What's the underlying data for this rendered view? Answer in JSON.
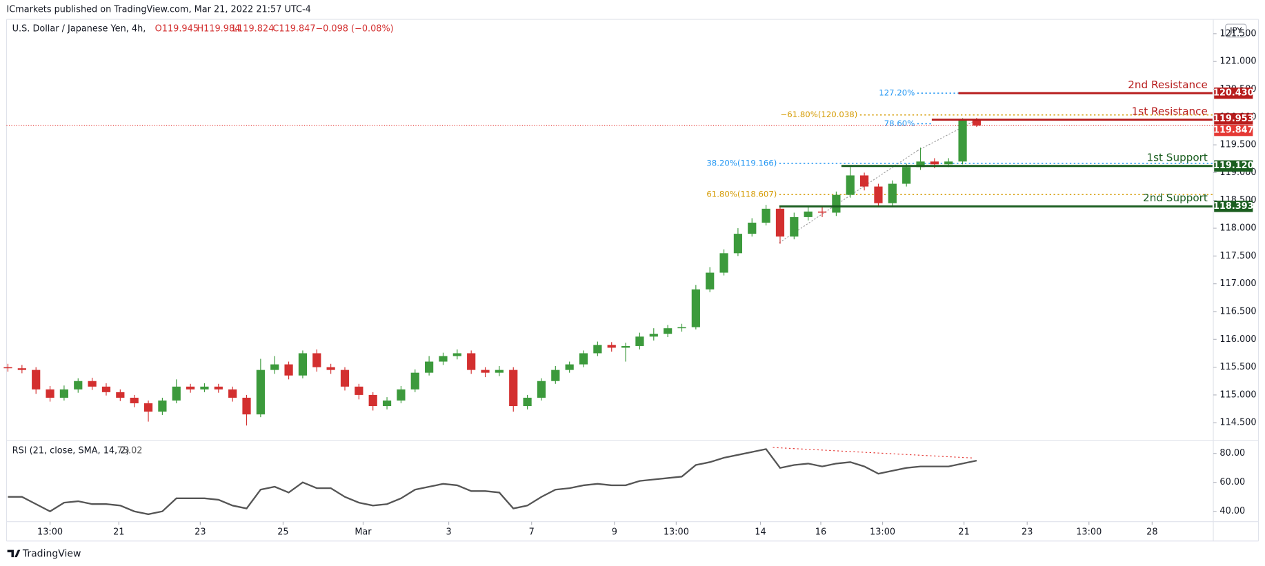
{
  "header": {
    "publisher": "ICmarkets published on TradingView.com, Mar 21, 2022 21:57 UTC-4",
    "symbol": "U.S. Dollar / Japanese Yen, 4h,",
    "readout": [
      "O119.945",
      "H119.984",
      "L119.824",
      "C119.847",
      "−0.098 (−0.08%)"
    ],
    "currency": "JPY",
    "brand": "TradingView"
  },
  "chart_data": {
    "type": "candlestick",
    "up_color": "#3c9a3c",
    "down_color": "#d32f2f",
    "xlim": [
      -0.1,
      85.8
    ],
    "ylim": [
      114.2,
      121.7
    ],
    "yticks": [
      {
        "value": 114.5,
        "label": "114.500"
      },
      {
        "value": 115,
        "label": "115.000"
      },
      {
        "value": 115.5,
        "label": "115.500"
      },
      {
        "value": 116,
        "label": "116.000"
      },
      {
        "value": 116.5,
        "label": "116.500"
      },
      {
        "value": 117,
        "label": "117.000"
      },
      {
        "value": 117.5,
        "label": "117.500"
      },
      {
        "value": 118,
        "label": "118.000"
      },
      {
        "value": 118.5,
        "label": "118.500"
      },
      {
        "value": 119,
        "label": "119.000"
      },
      {
        "value": 119.5,
        "label": "119.500"
      },
      {
        "value": 120,
        "label": "120.000"
      },
      {
        "value": 120.5,
        "label": "120.500"
      },
      {
        "value": 121,
        "label": "121.000"
      },
      {
        "value": 121.5,
        "label": "121.500"
      }
    ],
    "xticks": [
      {
        "value": 3,
        "label": "13:00"
      },
      {
        "value": 7.9,
        "label": "21"
      },
      {
        "value": 13.7,
        "label": "23"
      },
      {
        "value": 19.6,
        "label": "25"
      },
      {
        "value": 25.3,
        "label": "Mar"
      },
      {
        "value": 31.4,
        "label": "3"
      },
      {
        "value": 37.3,
        "label": "7"
      },
      {
        "value": 43.2,
        "label": "9"
      },
      {
        "value": 47.6,
        "label": "13:00"
      },
      {
        "value": 53.6,
        "label": "14"
      },
      {
        "value": 57.9,
        "label": "16"
      },
      {
        "value": 62.3,
        "label": "13:00"
      },
      {
        "value": 68.1,
        "label": "21"
      },
      {
        "value": 72.6,
        "label": "23"
      },
      {
        "value": 77,
        "label": "13:00"
      },
      {
        "value": 81.5,
        "label": "28"
      }
    ],
    "ohlc": [
      [
        115.5,
        115.56,
        115.42,
        115.48
      ],
      [
        115.48,
        115.54,
        115.39,
        115.45
      ],
      [
        115.45,
        115.5,
        115.02,
        115.1
      ],
      [
        115.1,
        115.16,
        114.88,
        114.95
      ],
      [
        114.95,
        115.17,
        114.9,
        115.1
      ],
      [
        115.1,
        115.3,
        115.04,
        115.25
      ],
      [
        115.25,
        115.31,
        115.09,
        115.15
      ],
      [
        115.15,
        115.21,
        114.99,
        115.05
      ],
      [
        115.05,
        115.1,
        114.89,
        114.95
      ],
      [
        114.95,
        115.0,
        114.78,
        114.85
      ],
      [
        114.85,
        114.9,
        114.52,
        114.7
      ],
      [
        114.7,
        114.95,
        114.64,
        114.9
      ],
      [
        114.9,
        115.28,
        114.85,
        115.15
      ],
      [
        115.15,
        115.2,
        115.04,
        115.1
      ],
      [
        115.1,
        115.21,
        115.05,
        115.15
      ],
      [
        115.15,
        115.2,
        115.04,
        115.1
      ],
      [
        115.1,
        115.15,
        114.88,
        114.95
      ],
      [
        114.95,
        115.0,
        114.45,
        114.65
      ],
      [
        114.65,
        115.65,
        114.6,
        115.45
      ],
      [
        115.45,
        115.7,
        115.38,
        115.55
      ],
      [
        115.55,
        115.6,
        115.28,
        115.35
      ],
      [
        115.35,
        115.8,
        115.3,
        115.75
      ],
      [
        115.75,
        115.82,
        115.42,
        115.5
      ],
      [
        115.5,
        115.56,
        115.38,
        115.45
      ],
      [
        115.45,
        115.5,
        115.08,
        115.15
      ],
      [
        115.15,
        115.2,
        114.92,
        115.0
      ],
      [
        115.0,
        115.05,
        114.72,
        114.8
      ],
      [
        114.8,
        114.96,
        114.74,
        114.9
      ],
      [
        114.9,
        115.16,
        114.85,
        115.1
      ],
      [
        115.1,
        115.46,
        115.05,
        115.4
      ],
      [
        115.4,
        115.7,
        115.35,
        115.6
      ],
      [
        115.6,
        115.76,
        115.54,
        115.7
      ],
      [
        115.7,
        115.82,
        115.64,
        115.75
      ],
      [
        115.75,
        115.8,
        115.38,
        115.45
      ],
      [
        115.45,
        115.5,
        115.32,
        115.4
      ],
      [
        115.4,
        115.52,
        115.34,
        115.45
      ],
      [
        115.45,
        115.5,
        114.7,
        114.8
      ],
      [
        114.8,
        115.0,
        114.74,
        114.95
      ],
      [
        114.95,
        115.3,
        114.9,
        115.25
      ],
      [
        115.25,
        115.52,
        115.2,
        115.45
      ],
      [
        115.45,
        115.6,
        115.4,
        115.55
      ],
      [
        115.55,
        115.8,
        115.5,
        115.75
      ],
      [
        115.75,
        115.96,
        115.7,
        115.9
      ],
      [
        115.9,
        115.95,
        115.78,
        115.85
      ],
      [
        115.85,
        115.94,
        115.6,
        115.88
      ],
      [
        115.88,
        116.12,
        115.82,
        116.05
      ],
      [
        116.05,
        116.2,
        115.98,
        116.1
      ],
      [
        116.1,
        116.26,
        116.04,
        116.2
      ],
      [
        116.2,
        116.28,
        116.14,
        116.22
      ],
      [
        116.22,
        116.98,
        116.18,
        116.9
      ],
      [
        116.9,
        117.3,
        116.85,
        117.2
      ],
      [
        117.2,
        117.62,
        117.15,
        117.55
      ],
      [
        117.55,
        118.0,
        117.5,
        117.9
      ],
      [
        117.9,
        118.18,
        117.85,
        118.1
      ],
      [
        118.1,
        118.42,
        118.05,
        118.35
      ],
      [
        118.35,
        118.4,
        117.72,
        117.85
      ],
      [
        117.85,
        118.28,
        117.8,
        118.2
      ],
      [
        118.2,
        118.38,
        118.14,
        118.3
      ],
      [
        118.3,
        118.4,
        118.2,
        118.28
      ],
      [
        118.28,
        118.66,
        118.22,
        118.6
      ],
      [
        118.6,
        119.1,
        118.55,
        118.95
      ],
      [
        118.95,
        119.0,
        118.68,
        118.75
      ],
      [
        118.75,
        118.8,
        118.38,
        118.45
      ],
      [
        118.45,
        118.86,
        118.4,
        118.8
      ],
      [
        118.8,
        119.16,
        118.75,
        119.1
      ],
      [
        119.1,
        119.45,
        119.05,
        119.2
      ],
      [
        119.2,
        119.26,
        119.08,
        119.15
      ],
      [
        119.15,
        119.26,
        119.1,
        119.2
      ],
      [
        119.2,
        119.98,
        119.15,
        119.94
      ],
      [
        119.945,
        119.984,
        119.824,
        119.847
      ]
    ],
    "levels": [
      {
        "name": "2nd Resistance",
        "value": 120.43,
        "label": "120.430",
        "color": "#b71c1c"
      },
      {
        "name": "1st Resistance",
        "value": 119.953,
        "label": "119.953",
        "color": "#b71c1c"
      },
      {
        "name": "1st Support",
        "value": 119.12,
        "label": "119.120",
        "color": "#1b5e20"
      },
      {
        "name": "2nd Support",
        "value": 118.393,
        "label": "118.393",
        "color": "#1b5e20"
      }
    ],
    "fib_levels": [
      {
        "label": "127.20%",
        "value": 120.43,
        "color": "#2196f3"
      },
      {
        "label": "−61.80%(120.038)",
        "value": 120.038,
        "color": "#d49a00"
      },
      {
        "label": "78.60%",
        "value": 119.88,
        "color": "#2196f3"
      },
      {
        "label": "38.20%(119.166)",
        "value": 119.166,
        "color": "#2196f3"
      },
      {
        "label": "61.80%(118.607)",
        "value": 118.607,
        "color": "#d49a00"
      }
    ],
    "rsi": {
      "title": "RSI (21, close, SMA, 14, 2)",
      "color": "#555555",
      "ylim": [
        34,
        88
      ],
      "yticks": [
        {
          "value": 40,
          "label": "40.00"
        },
        {
          "value": 60,
          "label": "60.00"
        },
        {
          "value": 80,
          "label": "80.00"
        }
      ],
      "values": [
        50,
        50,
        45,
        40,
        46,
        47,
        45,
        45,
        44,
        40,
        38,
        40,
        49,
        49,
        49,
        48,
        44,
        42,
        55,
        57,
        53,
        60,
        56,
        56,
        50,
        46,
        44,
        45,
        49,
        55,
        57,
        59,
        58,
        54,
        54,
        53,
        42,
        44,
        50,
        55,
        56,
        58,
        59,
        58,
        58,
        61,
        62,
        63,
        64,
        72,
        74,
        77,
        79,
        81,
        83,
        70,
        72,
        73,
        71,
        73,
        74,
        71,
        66,
        68,
        70,
        71,
        71,
        71,
        73,
        75.02
      ]
    }
  }
}
